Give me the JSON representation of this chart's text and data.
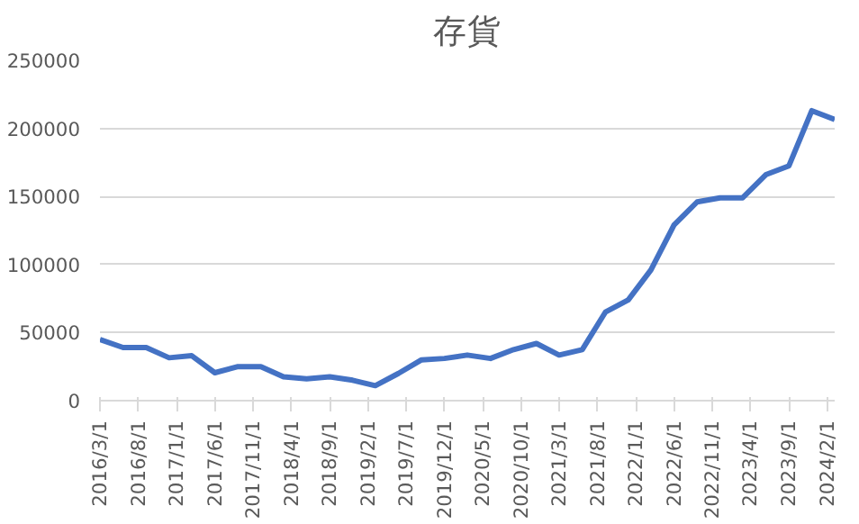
{
  "chart_data": {
    "type": "line",
    "title": "存貨",
    "x": [
      "2016-03-01",
      "2016-06-01",
      "2016-09-01",
      "2016-12-01",
      "2017-03-01",
      "2017-06-01",
      "2017-09-01",
      "2017-12-01",
      "2018-03-01",
      "2018-06-01",
      "2018-09-01",
      "2018-12-01",
      "2019-03-01",
      "2019-06-01",
      "2019-09-01",
      "2019-12-01",
      "2020-03-01",
      "2020-06-01",
      "2020-09-01",
      "2020-12-01",
      "2021-03-01",
      "2021-06-01",
      "2021-09-01",
      "2021-12-01",
      "2022-03-01",
      "2022-06-01",
      "2022-09-01",
      "2022-12-01",
      "2023-03-01",
      "2023-06-01",
      "2023-09-01",
      "2023-12-01",
      "2024-03-01"
    ],
    "series": [
      {
        "color": "#4472c4",
        "values": [
          45000,
          39000,
          39000,
          31500,
          33000,
          20500,
          25000,
          25000,
          17500,
          16000,
          17500,
          15000,
          11000,
          20000,
          30000,
          31000,
          33500,
          31000,
          37500,
          42000,
          33500,
          37500,
          65000,
          74000,
          96000,
          129000,
          146000,
          149000,
          149000,
          166000,
          172500,
          213000,
          206500
        ]
      }
    ],
    "xlim": [
      "2016-03-01",
      "2024-03-01"
    ],
    "xticks": [
      {
        "value": "2016-03-01",
        "label": "2016/3/1"
      },
      {
        "value": "2016-08-01",
        "label": "2016/8/1"
      },
      {
        "value": "2017-01-01",
        "label": "2017/1/1"
      },
      {
        "value": "2017-06-01",
        "label": "2017/6/1"
      },
      {
        "value": "2017-11-01",
        "label": "2017/11/1"
      },
      {
        "value": "2018-04-01",
        "label": "2018/4/1"
      },
      {
        "value": "2018-09-01",
        "label": "2018/9/1"
      },
      {
        "value": "2019-02-01",
        "label": "2019/2/1"
      },
      {
        "value": "2019-07-01",
        "label": "2019/7/1"
      },
      {
        "value": "2019-12-01",
        "label": "2019/12/1"
      },
      {
        "value": "2020-05-01",
        "label": "2020/5/1"
      },
      {
        "value": "2020-10-01",
        "label": "2020/10/1"
      },
      {
        "value": "2021-03-01",
        "label": "2021/3/1"
      },
      {
        "value": "2021-08-01",
        "label": "2021/8/1"
      },
      {
        "value": "2022-01-01",
        "label": "2022/1/1"
      },
      {
        "value": "2022-06-01",
        "label": "2022/6/1"
      },
      {
        "value": "2022-11-01",
        "label": "2022/11/1"
      },
      {
        "value": "2023-04-01",
        "label": "2023/4/1"
      },
      {
        "value": "2023-09-01",
        "label": "2023/9/1"
      },
      {
        "value": "2024-02-01",
        "label": "2024/2/1"
      }
    ],
    "ylim": [
      0,
      250000
    ],
    "yticks": [
      0,
      50000,
      100000,
      150000,
      200000,
      250000
    ],
    "grid": "y"
  }
}
